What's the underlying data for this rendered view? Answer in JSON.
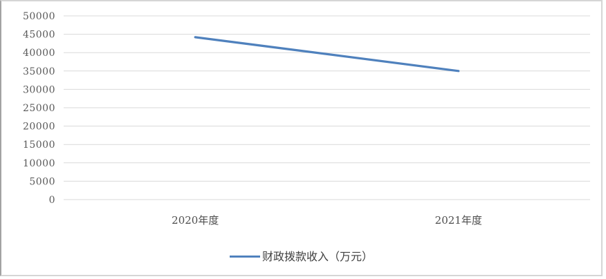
{
  "chart_data": {
    "type": "line",
    "categories": [
      "2020年度",
      "2021年度"
    ],
    "series": [
      {
        "name": "财政拨款收入（万元）",
        "values": [
          44200,
          35000
        ]
      }
    ],
    "title": "",
    "xlabel": "",
    "ylabel": "",
    "ylim": [
      0,
      50000
    ],
    "ytick_step": 5000,
    "ytick_labels": [
      "0",
      "5000",
      "10000",
      "15000",
      "20000",
      "25000",
      "30000",
      "35000",
      "40000",
      "45000",
      "50000"
    ],
    "grid": true,
    "legend_position": "bottom",
    "colors": {
      "series_line": "#4f81bd",
      "gridline": "#d9d9d9",
      "axis_text": "#595959",
      "legend_text": "#404040",
      "frame_border": "#d5d5d5",
      "frame_border_left": "#a3a3a3",
      "background": "#ffffff"
    }
  }
}
